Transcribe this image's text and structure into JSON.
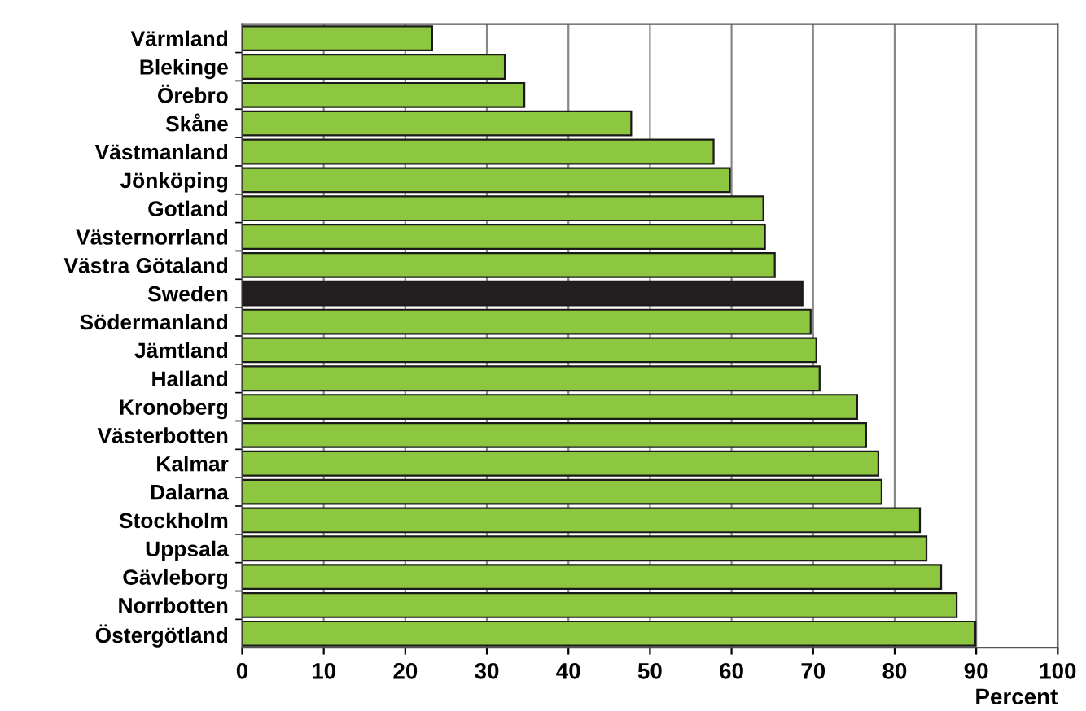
{
  "chart_data": {
    "type": "bar",
    "orientation": "horizontal",
    "categories": [
      "Värmland",
      "Blekinge",
      "Örebro",
      "Skåne",
      "Västmanland",
      "Jönköping",
      "Gotland",
      "Västernorrland",
      "Västra Götaland",
      "Sweden",
      "Södermanland",
      "Jämtland",
      "Halland",
      "Kronoberg",
      "Västerbotten",
      "Kalmar",
      "Dalarna",
      "Stockholm",
      "Uppsala",
      "Gävleborg",
      "Norrbotten",
      "Östergötland"
    ],
    "values": [
      23.3,
      32.2,
      34.6,
      47.7,
      57.8,
      59.8,
      63.9,
      64.1,
      65.3,
      68.7,
      69.7,
      70.4,
      70.8,
      75.4,
      76.5,
      78.0,
      78.4,
      83.1,
      83.9,
      85.7,
      87.6,
      89.9
    ],
    "colors": [
      "#8dc63f",
      "#8dc63f",
      "#8dc63f",
      "#8dc63f",
      "#8dc63f",
      "#8dc63f",
      "#8dc63f",
      "#8dc63f",
      "#8dc63f",
      "#231f20",
      "#8dc63f",
      "#8dc63f",
      "#8dc63f",
      "#8dc63f",
      "#8dc63f",
      "#8dc63f",
      "#8dc63f",
      "#8dc63f",
      "#8dc63f",
      "#8dc63f",
      "#8dc63f",
      "#8dc63f"
    ],
    "xlabel": "Percent",
    "xlim": [
      0,
      100
    ],
    "xticks": [
      0,
      10,
      20,
      30,
      40,
      50,
      60,
      70,
      80,
      90,
      100
    ],
    "grid": "x"
  }
}
